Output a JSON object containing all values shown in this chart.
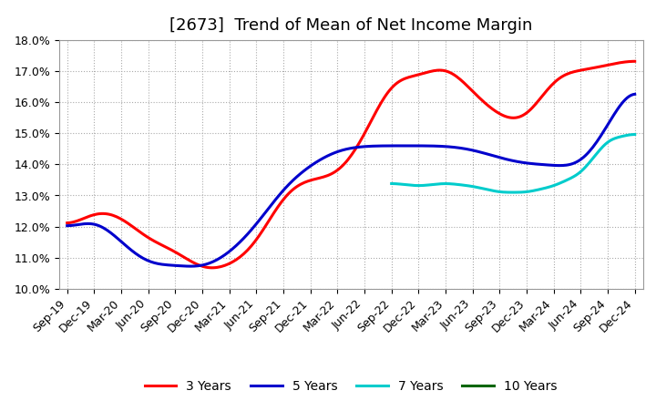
{
  "title": "[2673]  Trend of Mean of Net Income Margin",
  "ylim": [
    0.1,
    0.18
  ],
  "yticks": [
    0.1,
    0.11,
    0.12,
    0.13,
    0.14,
    0.15,
    0.16,
    0.17,
    0.18
  ],
  "ytick_labels": [
    "10.0%",
    "11.0%",
    "12.0%",
    "13.0%",
    "14.0%",
    "15.0%",
    "16.0%",
    "17.0%",
    "18.0%"
  ],
  "x_labels": [
    "Sep-19",
    "Dec-19",
    "Mar-20",
    "Jun-20",
    "Sep-20",
    "Dec-20",
    "Mar-21",
    "Jun-21",
    "Sep-21",
    "Dec-21",
    "Mar-22",
    "Jun-22",
    "Sep-22",
    "Dec-22",
    "Mar-23",
    "Jun-23",
    "Sep-23",
    "Dec-23",
    "Mar-24",
    "Jun-24",
    "Sep-24",
    "Dec-24"
  ],
  "line_3y": [
    0.118,
    0.126,
    0.124,
    0.115,
    0.113,
    0.105,
    0.107,
    0.113,
    0.132,
    0.136,
    0.135,
    0.148,
    0.17,
    0.167,
    0.174,
    0.163,
    0.155,
    0.152,
    0.17,
    0.17,
    0.172,
    0.174
  ],
  "line_5y": [
    0.118,
    0.124,
    0.115,
    0.107,
    0.108,
    0.106,
    0.111,
    0.12,
    0.133,
    0.14,
    0.145,
    0.146,
    0.146,
    0.146,
    0.146,
    0.145,
    0.142,
    0.14,
    0.14,
    0.138,
    0.152,
    0.17
  ],
  "line_7y": [
    null,
    null,
    null,
    null,
    null,
    null,
    null,
    null,
    null,
    null,
    null,
    null,
    0.134,
    0.133,
    0.134,
    0.133,
    0.131,
    0.131,
    0.133,
    0.137,
    0.148,
    0.15
  ],
  "line_10y": [
    null,
    null,
    null,
    null,
    null,
    null,
    null,
    null,
    null,
    null,
    null,
    null,
    null,
    null,
    null,
    null,
    null,
    null,
    null,
    null,
    null,
    null
  ],
  "color_3y": "#ff0000",
  "color_5y": "#0000cc",
  "color_7y": "#00cccc",
  "color_10y": "#006600",
  "bg_color": "#ffffff",
  "grid_color": "#aaaaaa",
  "title_fontsize": 13,
  "tick_fontsize": 9,
  "legend_fontsize": 10
}
